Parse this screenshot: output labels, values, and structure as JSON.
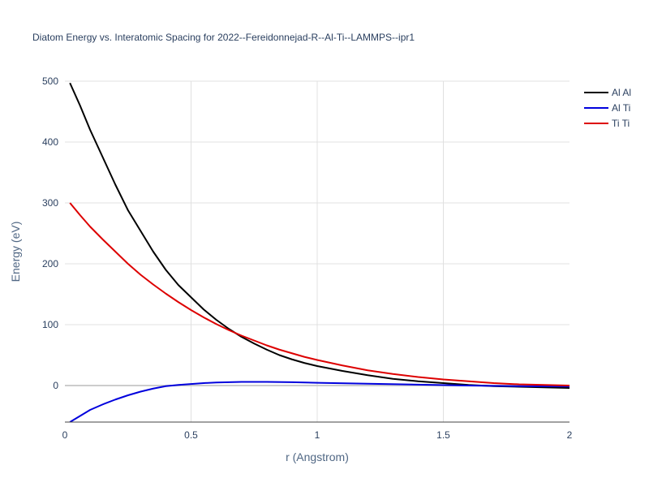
{
  "chart_data": {
    "type": "line",
    "title": "Diatom Energy vs. Interatomic Spacing for 2022--Fereidonnejad-R--Al-Ti--LAMMPS--ipr1",
    "xlabel": "r (Angstrom)",
    "ylabel": "Energy (eV)",
    "xlim": [
      0,
      2
    ],
    "ylim": [
      -60,
      500
    ],
    "xticks": [
      0,
      0.5,
      1,
      1.5,
      2
    ],
    "xtick_labels": [
      "0",
      "0.5",
      "1",
      "1.5",
      "2"
    ],
    "yticks": [
      0,
      100,
      200,
      300,
      400,
      500
    ],
    "ytick_labels": [
      "0",
      "100",
      "200",
      "300",
      "400",
      "500"
    ],
    "grid": true,
    "legend_position": "top-right",
    "series": [
      {
        "name": "Al Al",
        "color": "#000000",
        "points": [
          [
            0.02,
            497
          ],
          [
            0.06,
            460
          ],
          [
            0.1,
            420
          ],
          [
            0.15,
            375
          ],
          [
            0.2,
            330
          ],
          [
            0.25,
            288
          ],
          [
            0.3,
            254
          ],
          [
            0.35,
            220
          ],
          [
            0.4,
            190
          ],
          [
            0.45,
            165
          ],
          [
            0.5,
            145
          ],
          [
            0.55,
            125
          ],
          [
            0.6,
            108
          ],
          [
            0.65,
            93
          ],
          [
            0.7,
            80
          ],
          [
            0.75,
            69
          ],
          [
            0.8,
            59
          ],
          [
            0.85,
            50
          ],
          [
            0.9,
            43
          ],
          [
            0.95,
            37
          ],
          [
            1.0,
            32
          ],
          [
            1.1,
            24
          ],
          [
            1.2,
            17
          ],
          [
            1.3,
            11
          ],
          [
            1.4,
            7
          ],
          [
            1.5,
            4
          ],
          [
            1.6,
            1
          ],
          [
            1.7,
            -1
          ],
          [
            1.8,
            -2
          ],
          [
            1.9,
            -3
          ],
          [
            2.0,
            -4
          ]
        ]
      },
      {
        "name": "Al Ti",
        "color": "#0000dd",
        "points": [
          [
            0.02,
            -60
          ],
          [
            0.06,
            -50
          ],
          [
            0.1,
            -40
          ],
          [
            0.15,
            -31
          ],
          [
            0.2,
            -23
          ],
          [
            0.25,
            -16
          ],
          [
            0.3,
            -10
          ],
          [
            0.35,
            -5
          ],
          [
            0.4,
            -1
          ],
          [
            0.45,
            1
          ],
          [
            0.5,
            2.5
          ],
          [
            0.55,
            4
          ],
          [
            0.6,
            5
          ],
          [
            0.7,
            6
          ],
          [
            0.8,
            6
          ],
          [
            0.9,
            5.5
          ],
          [
            1.0,
            4.5
          ],
          [
            1.2,
            3
          ],
          [
            1.4,
            1.5
          ],
          [
            1.6,
            0
          ],
          [
            1.8,
            -1
          ],
          [
            2.0,
            -1.5
          ]
        ]
      },
      {
        "name": "Ti Ti",
        "color": "#dd0000",
        "points": [
          [
            0.02,
            300
          ],
          [
            0.06,
            280
          ],
          [
            0.1,
            261
          ],
          [
            0.15,
            240
          ],
          [
            0.2,
            220
          ],
          [
            0.25,
            200
          ],
          [
            0.3,
            182
          ],
          [
            0.35,
            166
          ],
          [
            0.4,
            151
          ],
          [
            0.45,
            137
          ],
          [
            0.5,
            124
          ],
          [
            0.55,
            112
          ],
          [
            0.6,
            101
          ],
          [
            0.65,
            91
          ],
          [
            0.7,
            82
          ],
          [
            0.75,
            74
          ],
          [
            0.8,
            66
          ],
          [
            0.85,
            59
          ],
          [
            0.9,
            53
          ],
          [
            0.95,
            47
          ],
          [
            1.0,
            42
          ],
          [
            1.1,
            33
          ],
          [
            1.2,
            25
          ],
          [
            1.3,
            19
          ],
          [
            1.4,
            14
          ],
          [
            1.5,
            10
          ],
          [
            1.6,
            7
          ],
          [
            1.7,
            4
          ],
          [
            1.8,
            2
          ],
          [
            1.9,
            1
          ],
          [
            2.0,
            0
          ]
        ]
      }
    ]
  }
}
